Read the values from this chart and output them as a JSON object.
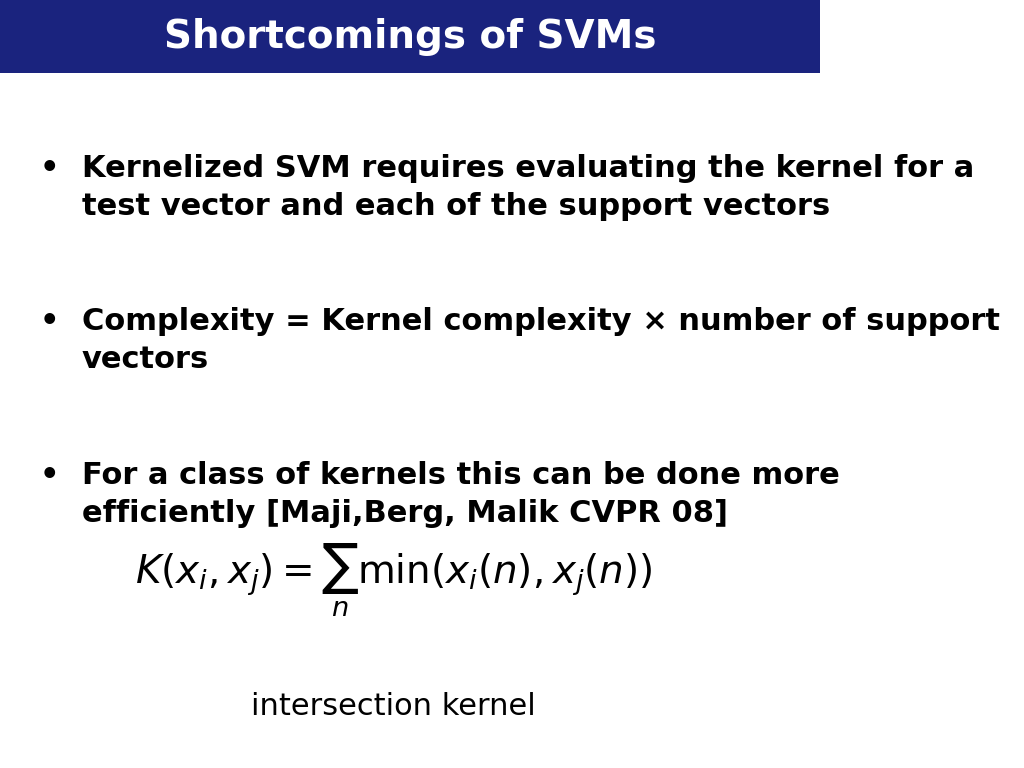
{
  "title": "Shortcomings of SVMs",
  "title_bg_color": "#1a237e",
  "title_text_color": "#ffffff",
  "title_fontsize": 28,
  "bg_color": "#ffffff",
  "bullet_color": "#000000",
  "bullet_fontsize": 22,
  "bullets": [
    "Kernelized SVM requires evaluating the kernel for a\ntest vector and each of the support vectors",
    "Complexity = Kernel complexity × number of support\nvectors",
    "For a class of kernels this can be done more\nefficiently [Maji,Berg, Malik CVPR 08]"
  ],
  "formula": "K(x_i, x_j) = \\sum_n \\min(x_i(n), x_j(n))",
  "formula_label": "intersection kernel",
  "formula_fontsize": 28,
  "label_fontsize": 22
}
